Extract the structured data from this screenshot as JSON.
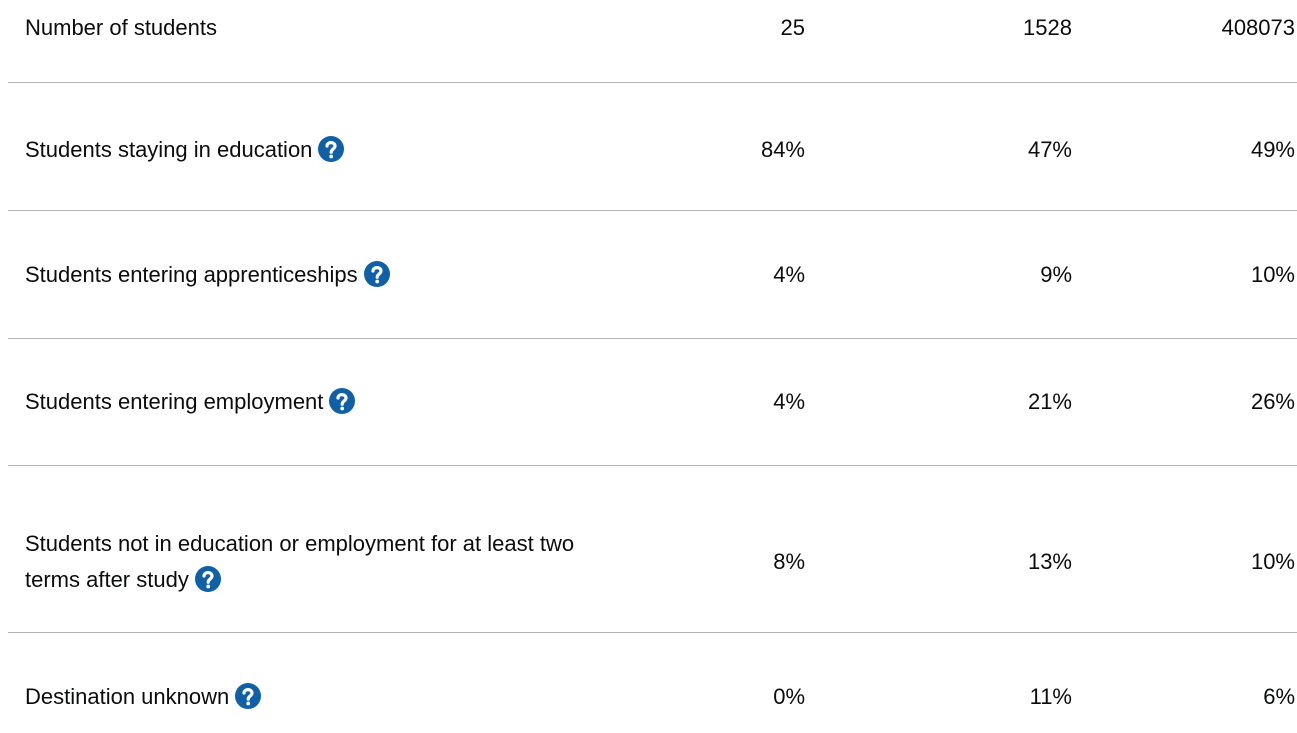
{
  "table": {
    "rows": [
      {
        "label": "Number of students",
        "values": [
          "25",
          "1528",
          "408073"
        ],
        "help": false
      },
      {
        "label": "Students staying in education",
        "values": [
          "84%",
          "47%",
          "49%"
        ],
        "help": true
      },
      {
        "label": "Students entering apprenticeships",
        "values": [
          "4%",
          "9%",
          "10%"
        ],
        "help": true
      },
      {
        "label": "Students entering employment",
        "values": [
          "4%",
          "21%",
          "26%"
        ],
        "help": true
      },
      {
        "label": "Students not in education or employment for at least two terms after study",
        "values": [
          "8%",
          "13%",
          "10%"
        ],
        "help": true
      },
      {
        "label": "Destination unknown",
        "values": [
          "0%",
          "11%",
          "6%"
        ],
        "help": true
      }
    ]
  }
}
